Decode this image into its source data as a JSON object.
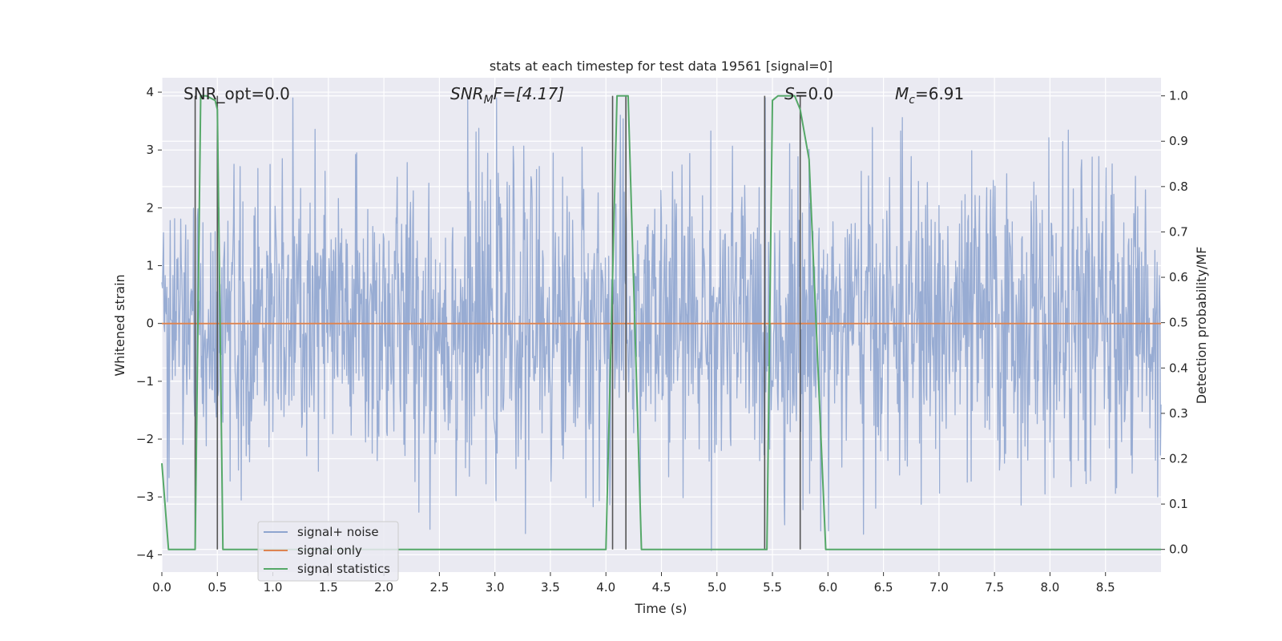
{
  "chart_data": {
    "type": "line",
    "title": "stats at each timestep for test data 19561 [signal=0]",
    "xlabel": "Time (s)",
    "ylabel_left": "Whitened strain",
    "ylabel_right": "Detection probability/MF",
    "xlim": [
      0,
      9.0
    ],
    "ylim_left": [
      -4.3,
      4.25
    ],
    "ylim_right": [
      -0.05,
      1.04
    ],
    "grid": true,
    "xticks": [
      "0.0",
      "0.5",
      "1.0",
      "1.5",
      "2.0",
      "2.5",
      "3.0",
      "3.5",
      "4.0",
      "4.5",
      "5.0",
      "5.5",
      "6.0",
      "6.5",
      "7.0",
      "7.5",
      "8.0",
      "8.5"
    ],
    "yticks_left": [
      "4",
      "3",
      "2",
      "1",
      "0",
      "−1",
      "−2",
      "−3",
      "−4"
    ],
    "yticks_right": [
      "1.0",
      "0.9",
      "0.8",
      "0.7",
      "0.6",
      "0.5",
      "0.4",
      "0.3",
      "0.2",
      "0.1",
      "0.0"
    ],
    "annotations": {
      "snr_opt": "SNR_opt=0.0",
      "snr_mf_base": "SNR",
      "snr_mf_sub": "M",
      "snr_mf_rest": "F=[4.17]",
      "s_var": "S",
      "s_rest": "=0.0",
      "mc_var": "M",
      "mc_sub": "c",
      "mc_rest": "=6.91"
    },
    "legend": {
      "placement": "lower-left",
      "entries": [
        {
          "label": "signal+ noise",
          "color": "#8fa5cf"
        },
        {
          "label": "signal only",
          "color": "#dd8452"
        },
        {
          "label": "signal statistics",
          "color": "#55a868"
        }
      ]
    },
    "series": [
      {
        "name": "signal+ noise",
        "axis": "left",
        "color": "#8fa5cf",
        "sample_rate_hz": 200,
        "envelope": {
          "sigma": 1.3,
          "max": 3.9,
          "min": -4.0
        }
      },
      {
        "name": "signal only",
        "axis": "left",
        "color": "#dd8452",
        "y_constant": 0.0
      },
      {
        "name": "signal statistics",
        "axis": "right",
        "color": "#55a868",
        "x": [
          0.0,
          0.06,
          0.1,
          0.3,
          0.35,
          0.4,
          0.48,
          0.5,
          0.55,
          4.0,
          4.1,
          4.2,
          4.32,
          5.45,
          5.5,
          5.55,
          5.7,
          5.75,
          5.83,
          5.98,
          9.0
        ],
        "y": [
          0.19,
          0.0,
          0.0,
          0.0,
          1.0,
          1.0,
          0.99,
          0.97,
          0.0,
          0.0,
          1.0,
          1.0,
          0.0,
          0.0,
          0.99,
          1.0,
          1.0,
          0.97,
          0.86,
          0.0,
          0.0
        ]
      }
    ],
    "vertical_markers": {
      "x": [
        0.3,
        0.5,
        4.06,
        4.18,
        5.43,
        5.75
      ],
      "y_top": 1.0,
      "y_bottom": 0.0,
      "color": "#555555"
    }
  }
}
